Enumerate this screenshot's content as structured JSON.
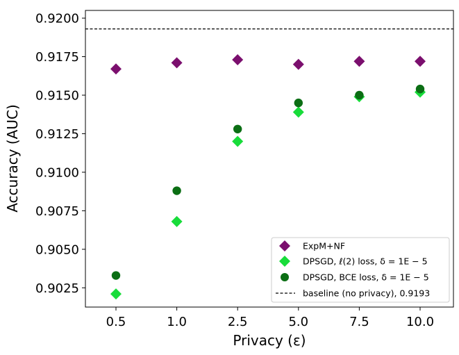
{
  "chart_data": {
    "type": "scatter",
    "title": "",
    "xlabel": "Privacy (ε)",
    "ylabel": "Accuracy (AUC)",
    "categories": [
      "0.5",
      "1.0",
      "2.5",
      "5.0",
      "7.5",
      "10.0"
    ],
    "ylim": [
      0.90125,
      0.9205
    ],
    "yticks": [
      "0.9025",
      "0.9050",
      "0.9075",
      "0.9100",
      "0.9125",
      "0.9150",
      "0.9175",
      "0.9200"
    ],
    "grid": false,
    "legend_position": "lower-right",
    "series": [
      {
        "name": "ExpM+NF",
        "marker": "diamond",
        "color": "#7b0f6e",
        "values": [
          0.9167,
          0.9171,
          0.9173,
          0.917,
          0.9172,
          0.9172
        ]
      },
      {
        "name": "DPSGD, ℓ(2) loss, δ = 1E − 5",
        "marker": "diamond",
        "color": "#18dc3a",
        "values": [
          0.9021,
          0.9068,
          0.912,
          0.9139,
          0.9149,
          0.9152
        ]
      },
      {
        "name": "DPSGD, BCE loss, δ = 1E − 5",
        "marker": "circle",
        "color": "#0b6e14",
        "values": [
          0.9033,
          0.9088,
          0.9128,
          0.9145,
          0.915,
          0.9154
        ]
      }
    ],
    "baseline": {
      "name": "baseline (no privacy), 0.9193",
      "value": 0.9193,
      "style": "dashed",
      "color": "#000000"
    }
  }
}
